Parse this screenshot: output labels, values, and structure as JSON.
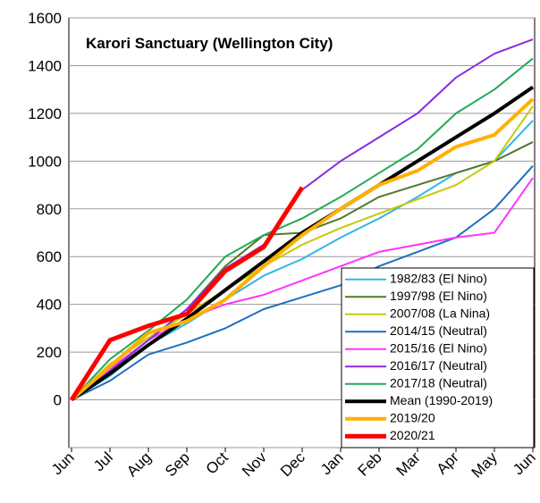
{
  "chart_data": {
    "type": "line",
    "title": "Karori Sanctuary (Wellington City)",
    "categories": [
      "Jun",
      "Jul",
      "Aug",
      "Sep",
      "Oct",
      "Nov",
      "Dec",
      "Jan",
      "Feb",
      "Mar",
      "Apr",
      "May",
      "Jun"
    ],
    "ylim": [
      -200,
      1600
    ],
    "yticks": [
      -200,
      0,
      200,
      400,
      600,
      800,
      1000,
      1200,
      1400,
      1600
    ],
    "grid": true,
    "legend": "lower right",
    "series": [
      {
        "name": "1982/83 (El Nino)",
        "color": "#33b5e5",
        "width": 2,
        "values": [
          0,
          100,
          230,
          320,
          420,
          520,
          590,
          680,
          760,
          850,
          950,
          1000,
          1170
        ]
      },
      {
        "name": "1997/98 (El Nino)",
        "color": "#4f7a28",
        "width": 2,
        "values": [
          0,
          120,
          250,
          380,
          560,
          690,
          700,
          760,
          850,
          900,
          950,
          1000,
          1080
        ]
      },
      {
        "name": "2007/08 (La Nina)",
        "color": "#c8c800",
        "width": 2,
        "values": [
          0,
          150,
          260,
          360,
          460,
          560,
          650,
          720,
          780,
          840,
          900,
          1000,
          1230
        ]
      },
      {
        "name": "2014/15 (Neutral)",
        "color": "#1f6fbf",
        "width": 2,
        "values": [
          0,
          80,
          190,
          240,
          300,
          380,
          430,
          480,
          560,
          620,
          680,
          800,
          980
        ]
      },
      {
        "name": "2015/16 (El Nino)",
        "color": "#ff33ff",
        "width": 2,
        "values": [
          0,
          130,
          250,
          340,
          400,
          440,
          500,
          560,
          620,
          650,
          680,
          700,
          930
        ]
      },
      {
        "name": "2016/17 (Neutral)",
        "color": "#8a2be2",
        "width": 2,
        "values": [
          0,
          120,
          250,
          380,
          550,
          650,
          880,
          1000,
          1100,
          1200,
          1350,
          1450,
          1510
        ]
      },
      {
        "name": "2017/18 (Neutral)",
        "color": "#22aa55",
        "width": 2,
        "values": [
          0,
          170,
          290,
          420,
          600,
          690,
          760,
          850,
          950,
          1050,
          1200,
          1300,
          1430
        ]
      },
      {
        "name": "Mean (1990-2019)",
        "color": "#000000",
        "width": 4,
        "values": [
          0,
          110,
          230,
          340,
          460,
          580,
          700,
          800,
          900,
          1000,
          1100,
          1200,
          1310
        ]
      },
      {
        "name": "2019/20",
        "color": "#ffb000",
        "width": 4,
        "values": [
          0,
          140,
          280,
          330,
          420,
          560,
          690,
          800,
          900,
          960,
          1060,
          1110,
          1260
        ]
      },
      {
        "name": "2020/21",
        "color": "#ff0000",
        "width": 5,
        "values": [
          0,
          250,
          310,
          360,
          540,
          640,
          890,
          null,
          null,
          null,
          null,
          null,
          null
        ]
      }
    ]
  }
}
